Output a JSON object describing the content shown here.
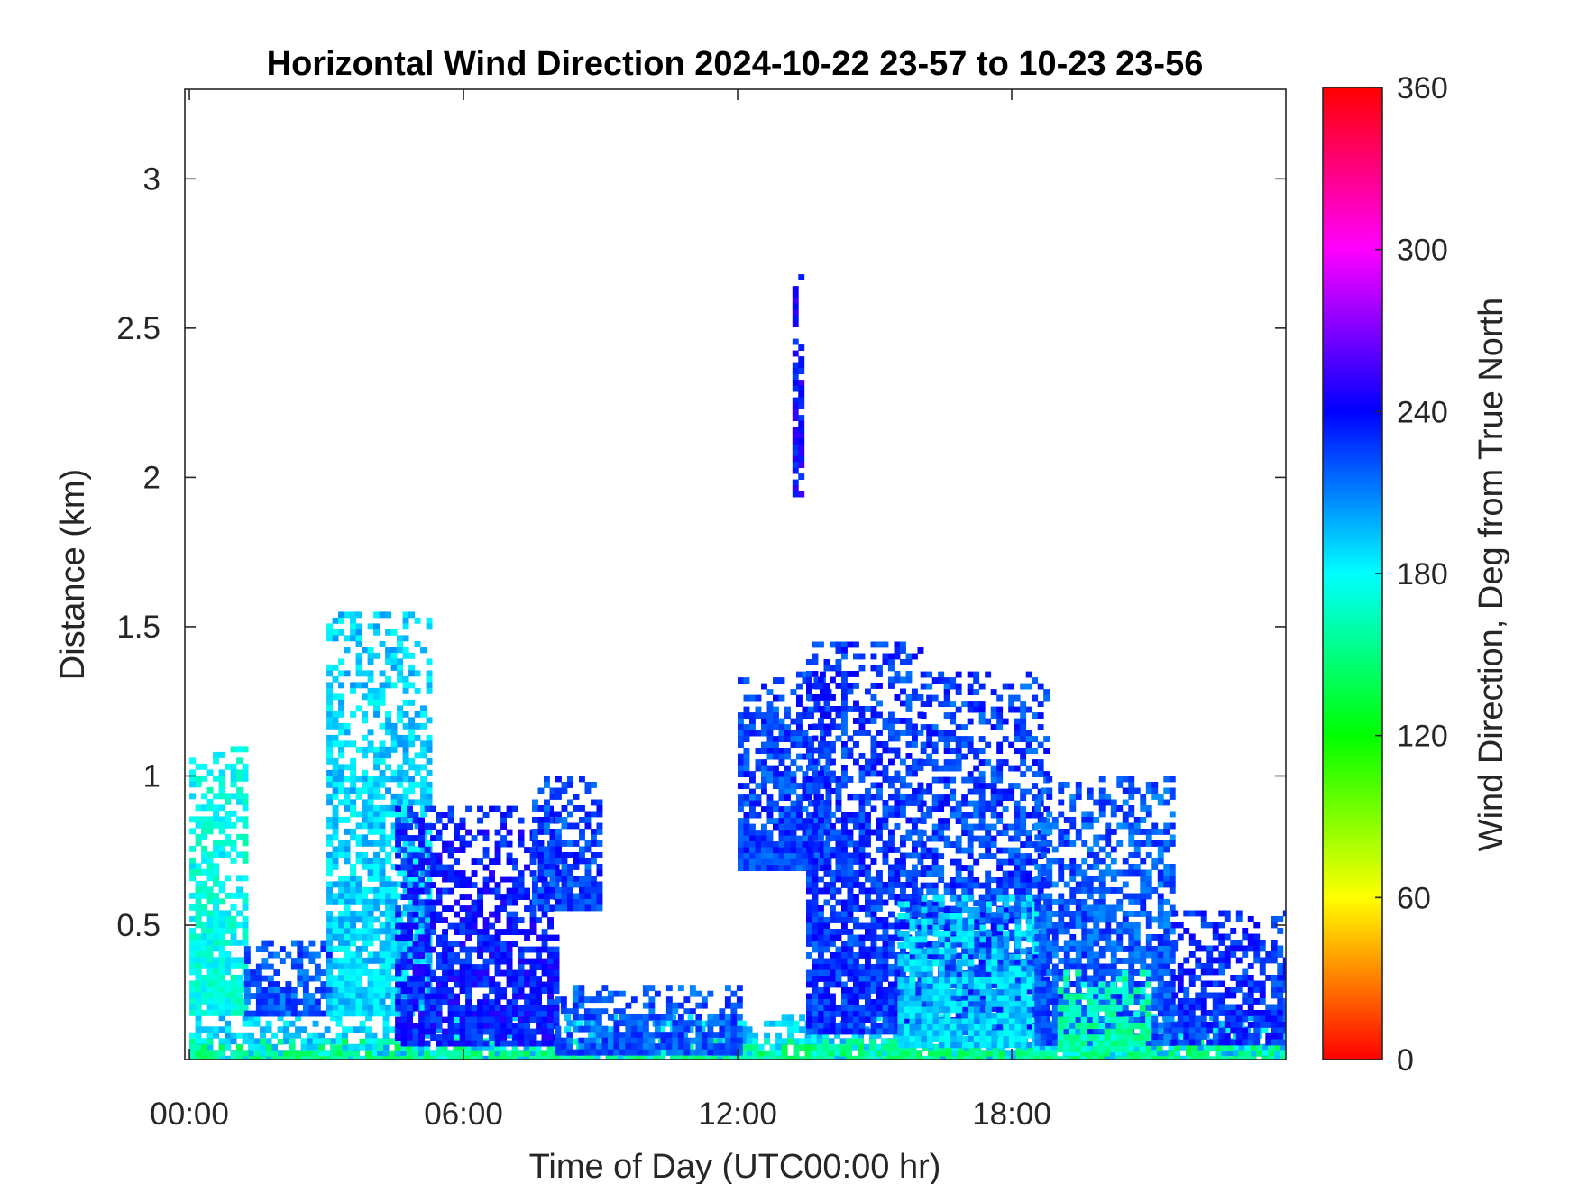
{
  "chart_data": {
    "type": "heatmap",
    "title": "Horizontal Wind Direction 2024-10-22 23-57 to 10-23 23-56",
    "xlabel": "Time of Day (UTC00:00 hr)",
    "ylabel": "Distance (km)",
    "x_unit": "hours",
    "xlim": [
      -0.1,
      24
    ],
    "ylim": [
      0.05,
      3.3
    ],
    "x_ticks": [
      {
        "value": 0,
        "label": "00:00"
      },
      {
        "value": 6,
        "label": "06:00"
      },
      {
        "value": 12,
        "label": "12:00"
      },
      {
        "value": 18,
        "label": "18:00"
      }
    ],
    "y_ticks": [
      {
        "value": 0.5,
        "label": "0.5"
      },
      {
        "value": 1,
        "label": "1"
      },
      {
        "value": 1.5,
        "label": "1.5"
      },
      {
        "value": 2,
        "label": "2"
      },
      {
        "value": 2.5,
        "label": "2.5"
      },
      {
        "value": 3,
        "label": "3"
      }
    ],
    "colorbar": {
      "label": "Wind Direction, Deg from True North",
      "range": [
        0,
        360
      ],
      "ticks": [
        0,
        60,
        120,
        180,
        240,
        300,
        360
      ],
      "colormap": "hsv",
      "stops": [
        {
          "value": 0,
          "color": "#ff0000"
        },
        {
          "value": 60,
          "color": "#ffff00"
        },
        {
          "value": 120,
          "color": "#00ff00"
        },
        {
          "value": 180,
          "color": "#00ffff"
        },
        {
          "value": 240,
          "color": "#0000ff"
        },
        {
          "value": 300,
          "color": "#ff00ff"
        },
        {
          "value": 360,
          "color": "#ff0000"
        }
      ]
    },
    "grid": false,
    "regions": [
      {
        "x": [
          0,
          24
        ],
        "y": [
          0.05,
          0.2
        ],
        "direction": 190
      },
      {
        "x": [
          0,
          24
        ],
        "y": [
          0.05,
          0.12
        ],
        "direction": 150
      },
      {
        "x": [
          0,
          1.2
        ],
        "y": [
          0.2,
          1.1
        ],
        "direction": 175
      },
      {
        "x": [
          1.2,
          3.2
        ],
        "y": [
          0.2,
          0.45
        ],
        "direction": 220
      },
      {
        "x": [
          3.0,
          5.2
        ],
        "y": [
          0.2,
          1.55
        ],
        "direction": 190
      },
      {
        "x": [
          4.5,
          8.0
        ],
        "y": [
          0.1,
          0.9
        ],
        "direction": 235
      },
      {
        "x": [
          7.5,
          9.0
        ],
        "y": [
          0.55,
          1.0
        ],
        "direction": 225
      },
      {
        "x": [
          8.0,
          12.0
        ],
        "y": [
          0.08,
          0.3
        ],
        "direction": 220
      },
      {
        "x": [
          12.0,
          14.0
        ],
        "y": [
          0.7,
          1.35
        ],
        "direction": 225
      },
      {
        "x": [
          13.5,
          16.0
        ],
        "y": [
          0.15,
          1.45
        ],
        "direction": 228
      },
      {
        "x": [
          16.0,
          18.8
        ],
        "y": [
          0.15,
          1.35
        ],
        "direction": 225
      },
      {
        "x": [
          15.5,
          18.5
        ],
        "y": [
          0.1,
          0.6
        ],
        "direction": 190
      },
      {
        "x": [
          18.5,
          21.5
        ],
        "y": [
          0.1,
          1.0
        ],
        "direction": 220
      },
      {
        "x": [
          19.0,
          21.0
        ],
        "y": [
          0.08,
          0.35
        ],
        "direction": 160
      },
      {
        "x": [
          21.5,
          24.0
        ],
        "y": [
          0.1,
          0.55
        ],
        "direction": 230
      },
      {
        "x": [
          13.2,
          13.4
        ],
        "y": [
          1.95,
          2.7
        ],
        "direction": 240
      }
    ]
  }
}
